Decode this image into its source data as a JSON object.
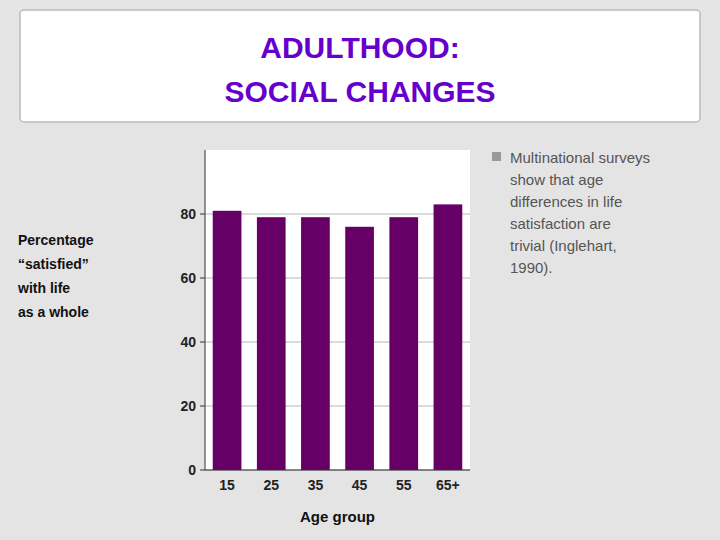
{
  "chart_data": {
    "type": "bar",
    "title": "ADULTHOOD:",
    "subtitle": "SOCIAL CHANGES",
    "categories": [
      "15",
      "25",
      "35",
      "45",
      "55",
      "65+"
    ],
    "values": [
      81,
      79,
      79,
      76,
      79,
      83
    ],
    "color": "#660066",
    "xlabel": "Age group",
    "ylabel": "Percentage\n“satisfied”\nwith life\nas a whole",
    "annotations": [
      "Multinational surveys\nshow that age\ndifferences in life\nsatisfaction are\ntrivial (Inglehart,\n1990)."
    ],
    "ylim": [
      0,
      100
    ],
    "yticks": [
      0,
      20,
      40,
      60,
      80
    ],
    "grid": true
  }
}
